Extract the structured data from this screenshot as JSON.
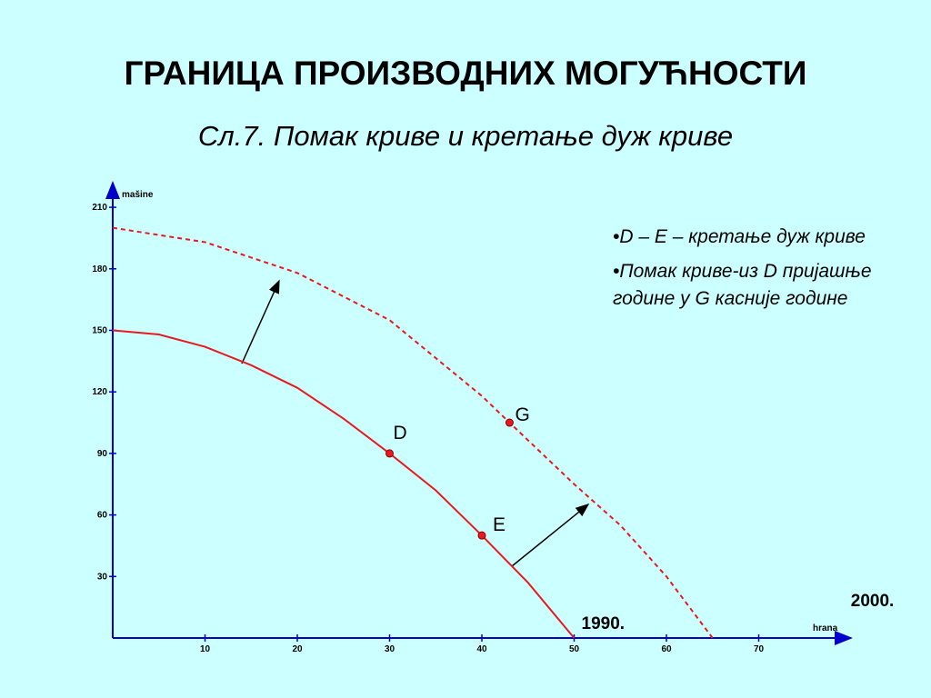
{
  "chart_data": {
    "type": "line",
    "title": "ГРАНИЦА ПРОИЗВОДНИХ МОГУЋНОСТИ",
    "subtitle": "Сл.7. Помак криве и кретање дуж криве",
    "y_label": "mašine",
    "x_label": "hrana",
    "xlim": [
      0,
      80
    ],
    "ylim": [
      0,
      222
    ],
    "xticks": [
      10,
      20,
      30,
      40,
      50,
      60,
      70
    ],
    "yticks": [
      30,
      60,
      90,
      120,
      150,
      180,
      210
    ],
    "series": [
      {
        "name": "1990.",
        "color": "#e8191f",
        "dashed": false,
        "x": [
          0,
          5,
          10,
          15,
          20,
          25,
          30,
          35,
          40,
          45,
          50
        ],
        "values": [
          150,
          148,
          142,
          133,
          122,
          107,
          90,
          72,
          50,
          27,
          0
        ]
      },
      {
        "name": "2000.",
        "color": "#e8191f",
        "dashed": true,
        "x": [
          0,
          10,
          20,
          30,
          40,
          43,
          50,
          55,
          60,
          65
        ],
        "values": [
          200,
          193,
          178,
          155,
          118,
          105,
          75,
          55,
          30,
          0
        ]
      }
    ],
    "points": [
      {
        "label": "D",
        "x": 30,
        "y": 90
      },
      {
        "label": "E",
        "x": 40,
        "y": 50
      },
      {
        "label": "G",
        "x": 43,
        "y": 105
      }
    ],
    "notes": [
      "•D – E – кретање дуж криве",
      "•Помак криве-из D пријашње године у G касније године"
    ]
  }
}
